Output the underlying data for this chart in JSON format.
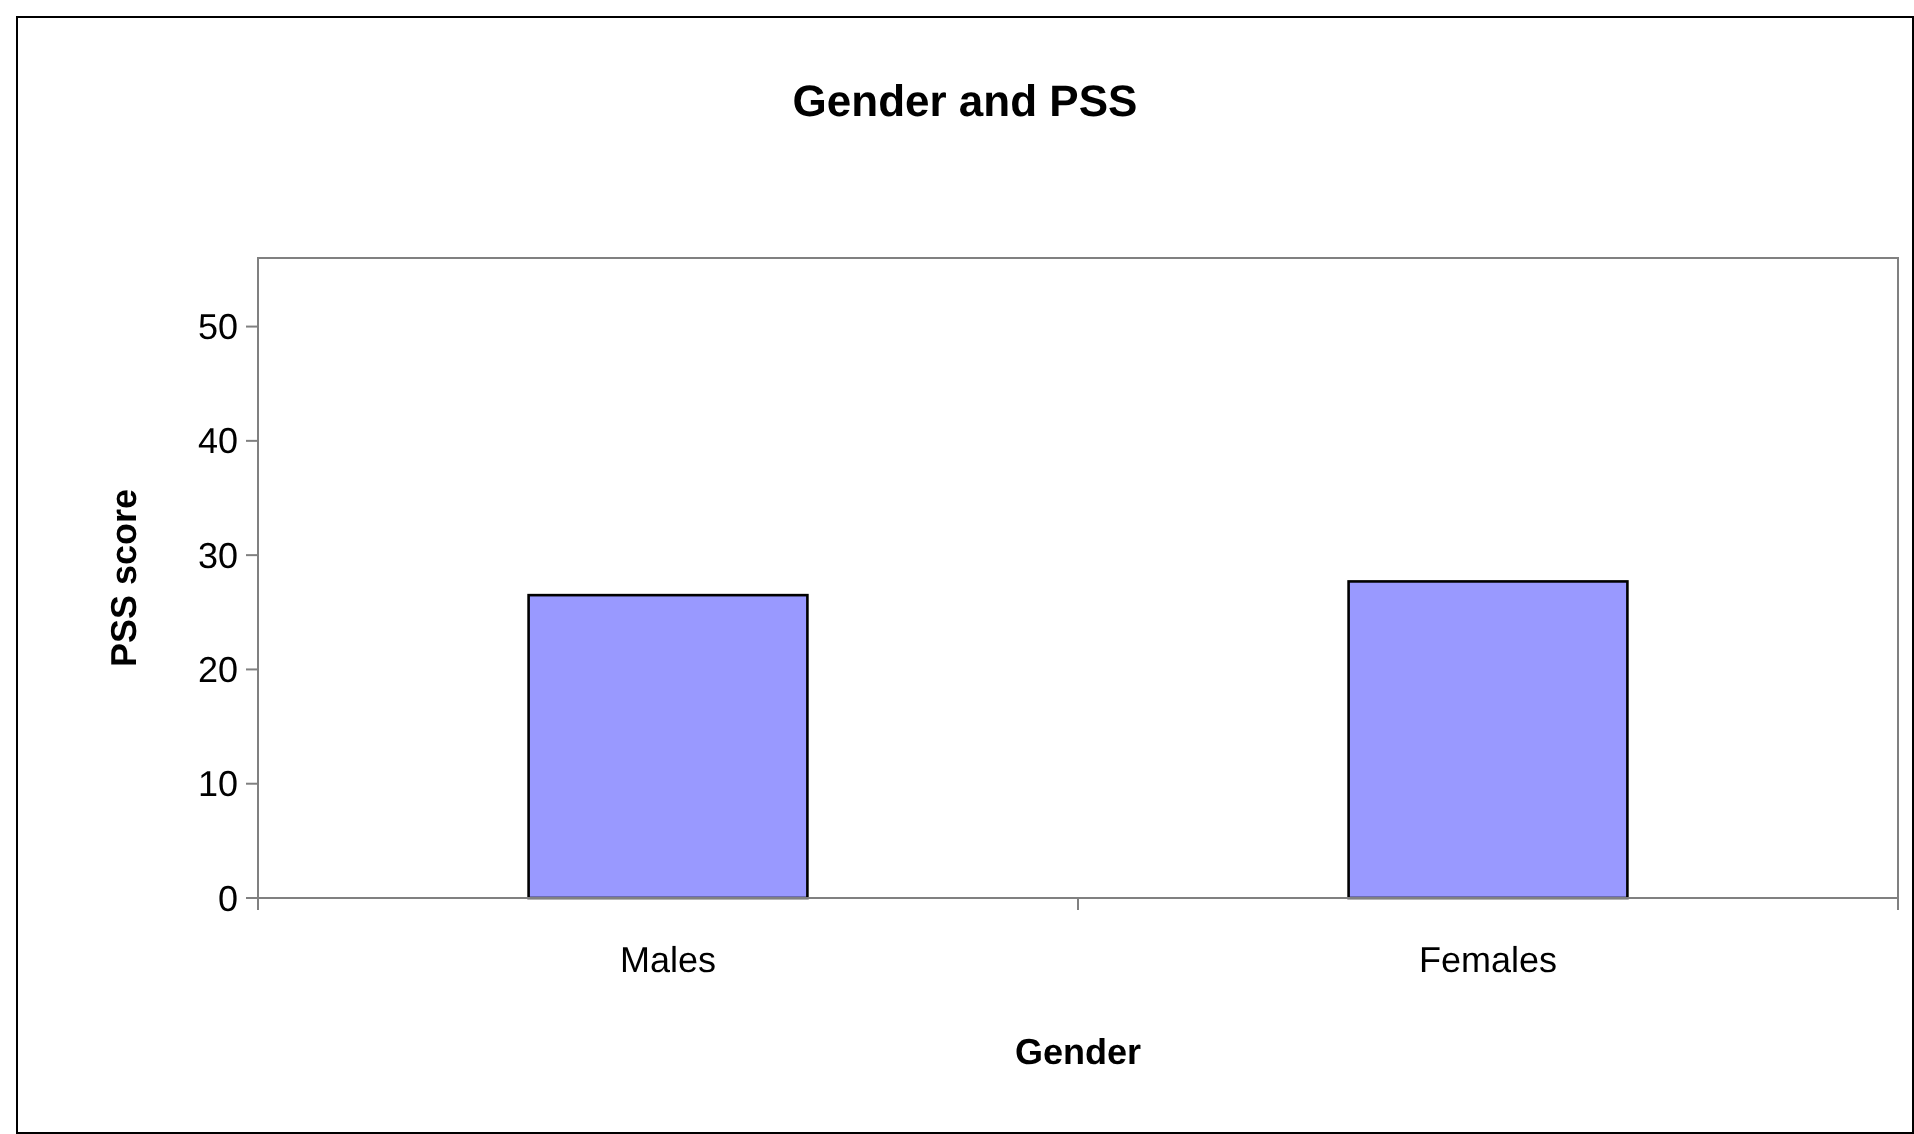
{
  "chart_data": {
    "type": "bar",
    "title": "Gender and PSS",
    "xlabel": "Gender",
    "ylabel": "PSS score",
    "categories": [
      "Males",
      "Females"
    ],
    "values": [
      26.5,
      27.7
    ],
    "color": "#9999ff",
    "ylim": [
      0,
      56
    ],
    "yticks": [
      0,
      10,
      20,
      30,
      40,
      50
    ],
    "grid": false
  }
}
